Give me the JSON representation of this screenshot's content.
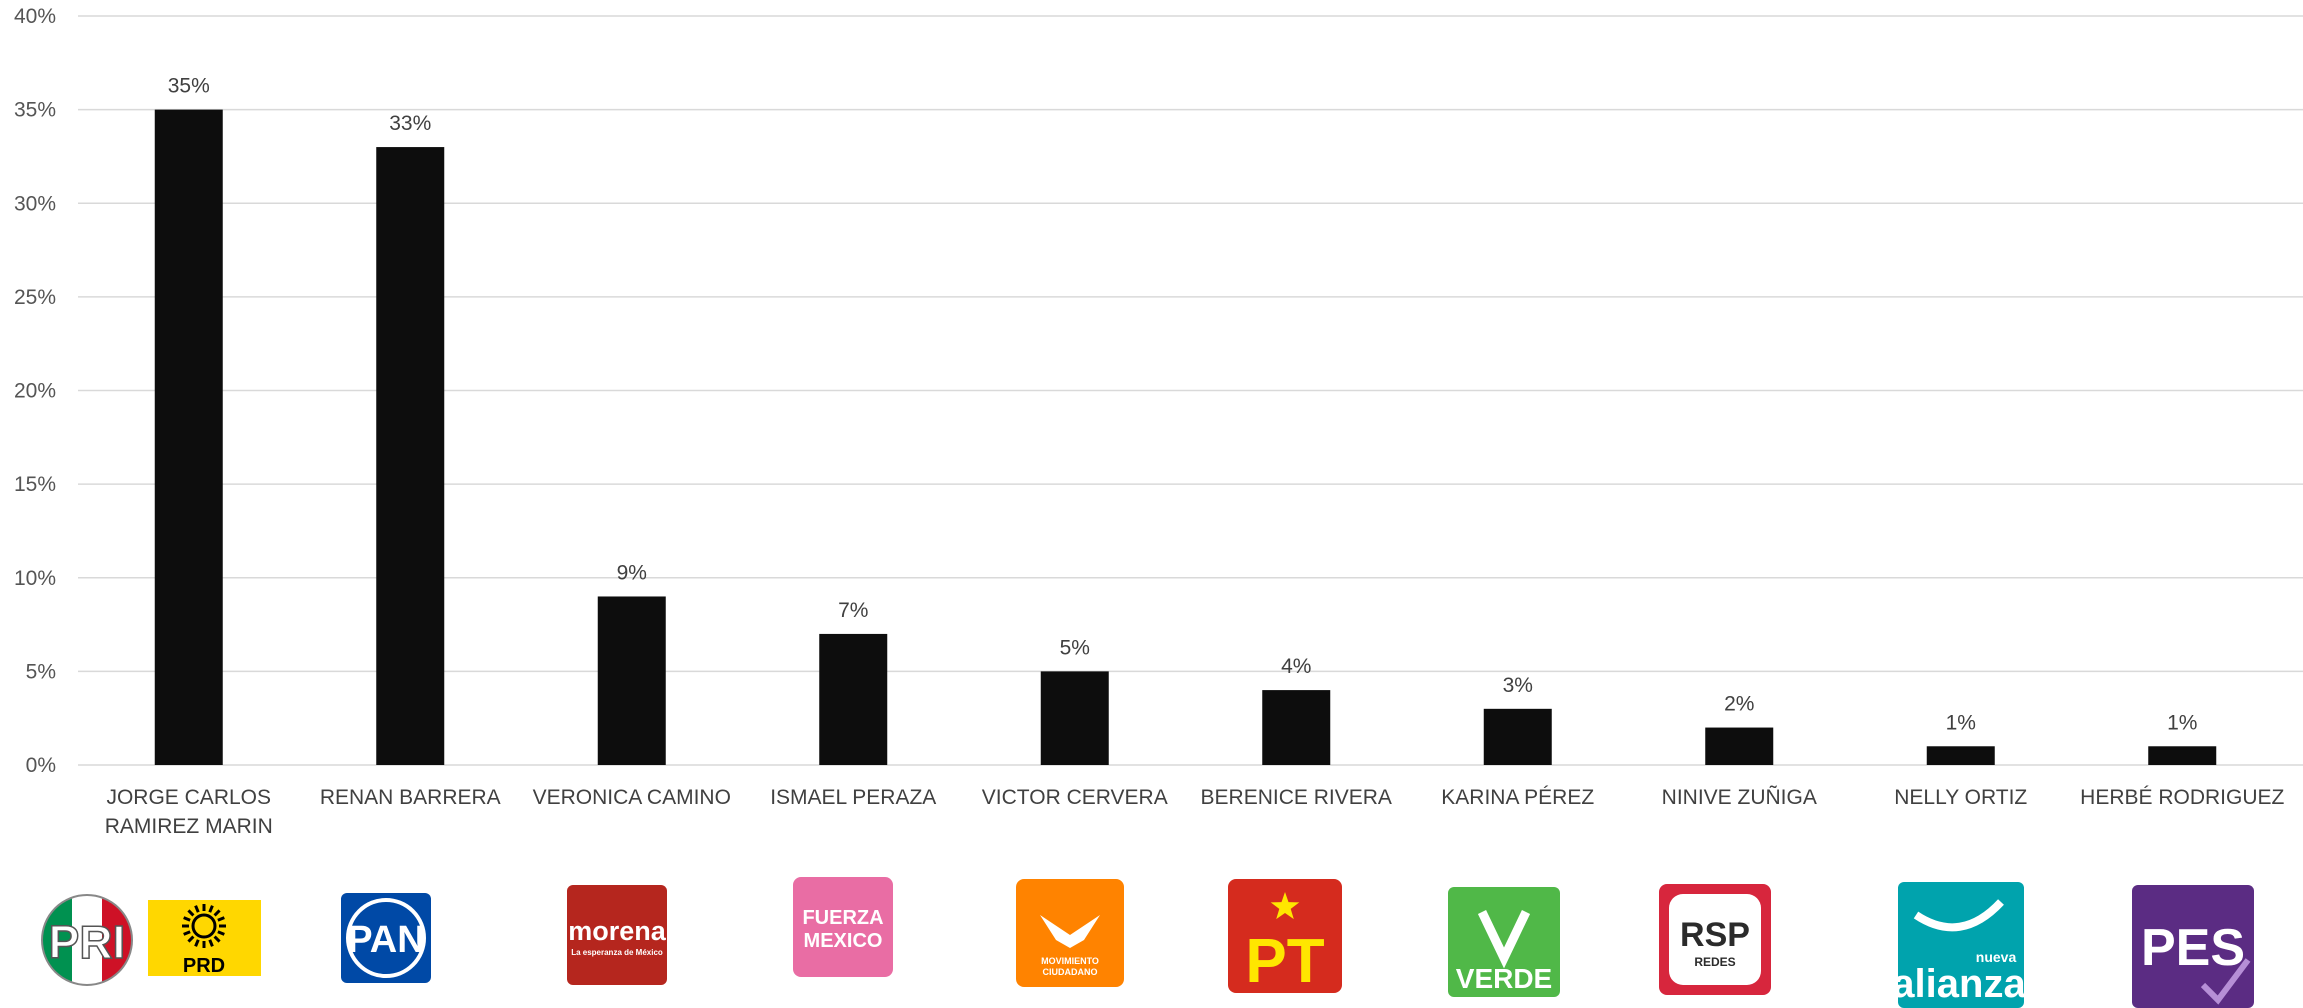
{
  "chart_data": {
    "type": "bar",
    "title": "",
    "xlabel": "",
    "ylabel": "",
    "ylim": [
      0,
      40
    ],
    "yticks": [
      "0%",
      "5%",
      "10%",
      "15%",
      "20%",
      "25%",
      "30%",
      "35%",
      "40%"
    ],
    "grid": true,
    "categories": [
      [
        "JORGE CARLOS",
        "RAMIREZ MARIN"
      ],
      [
        "RENAN BARRERA"
      ],
      [
        "VERONICA CAMINO"
      ],
      [
        "ISMAEL PERAZA"
      ],
      [
        "VICTOR CERVERA"
      ],
      [
        "BERENICE RIVERA"
      ],
      [
        "KARINA PÉREZ"
      ],
      [
        "NINIVE ZUÑIGA"
      ],
      [
        "NELLY ORTIZ"
      ],
      [
        "HERBÉ RODRIGUEZ"
      ]
    ],
    "values": [
      35,
      33,
      9,
      7,
      5,
      4,
      3,
      2,
      1,
      1
    ],
    "data_labels": [
      "35%",
      "33%",
      "9%",
      "7%",
      "5%",
      "4%",
      "3%",
      "2%",
      "1%",
      "1%"
    ],
    "bar_color": "#0d0d0d"
  },
  "party_logos": [
    [
      {
        "name": "pri-logo",
        "text": "PRI",
        "colors": [
          "#009150",
          "#ffffff",
          "#ce1126"
        ]
      },
      {
        "name": "prd-logo",
        "text": "PRD",
        "colors": [
          "#ffd700",
          "#000000"
        ]
      }
    ],
    [
      {
        "name": "pan-logo",
        "text": "PAN",
        "colors": [
          "#0049a6",
          "#ffffff"
        ]
      }
    ],
    [
      {
        "name": "morena-logo",
        "text": "morena",
        "subtext": "La esperanza de México",
        "colors": [
          "#b5261e",
          "#ffffff"
        ]
      }
    ],
    [
      {
        "name": "fuerza-mexico-logo",
        "text": "FUERZA",
        "text2": "MEXICO",
        "colors": [
          "#e96da4",
          "#ffffff"
        ]
      }
    ],
    [
      {
        "name": "movimiento-ciudadano-logo",
        "text": "MOVIMIENTO",
        "text2": "CIUDADANO",
        "colors": [
          "#ff8300",
          "#ffffff"
        ]
      }
    ],
    [
      {
        "name": "pt-logo",
        "text": "PT",
        "colors": [
          "#d52b1e",
          "#ffe600"
        ]
      }
    ],
    [
      {
        "name": "verde-logo",
        "text": "VERDE",
        "colors": [
          "#50b848",
          "#ffffff"
        ]
      }
    ],
    [
      {
        "name": "rsp-logo",
        "text": "RSP",
        "subtext": "REDES",
        "colors": [
          "#d7263d",
          "#ffffff",
          "#2b2b2b"
        ]
      }
    ],
    [
      {
        "name": "nueva-alianza-logo",
        "text": "alianza",
        "subtext": "nueva",
        "colors": [
          "#00a3ad",
          "#ffffff"
        ]
      }
    ],
    [
      {
        "name": "pes-logo",
        "text": "PES",
        "colors": [
          "#5b2c83",
          "#ffffff",
          "#b68fd6"
        ]
      }
    ]
  ]
}
